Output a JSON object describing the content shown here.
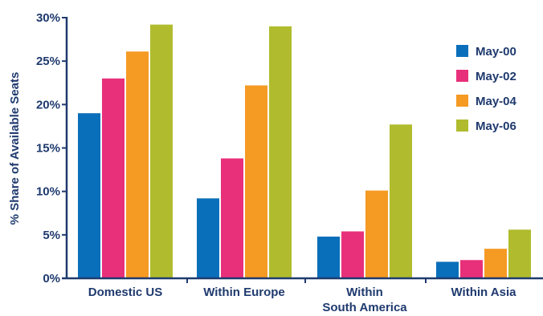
{
  "chart_data": {
    "type": "bar",
    "title": "",
    "xlabel": "",
    "ylabel": "% Share of Available Seats",
    "ylim": [
      0,
      30
    ],
    "yticks": [
      "0%",
      "5%",
      "10%",
      "15%",
      "20%",
      "25%",
      "30%"
    ],
    "ytick_values": [
      0,
      5,
      10,
      15,
      20,
      25,
      30
    ],
    "categories": [
      [
        "Domestic US"
      ],
      [
        "Within Europe"
      ],
      [
        "Within",
        "South America"
      ],
      [
        "Within Asia"
      ]
    ],
    "series": [
      {
        "name": "May-00",
        "color": "#0a6fba",
        "values": [
          19.0,
          9.2,
          4.8,
          1.9
        ]
      },
      {
        "name": "May-02",
        "color": "#e8307a",
        "values": [
          23.0,
          13.8,
          5.4,
          2.1
        ]
      },
      {
        "name": "May-04",
        "color": "#f59a23",
        "values": [
          26.1,
          22.2,
          10.1,
          3.4
        ]
      },
      {
        "name": "May-06",
        "color": "#b0bc2e",
        "values": [
          29.2,
          29.0,
          17.7,
          5.6
        ]
      }
    ],
    "grid": false,
    "legend_position": "top-right",
    "axis_color": "#1f3a6e"
  }
}
